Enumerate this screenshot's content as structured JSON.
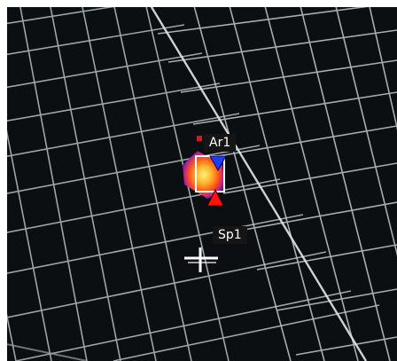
{
  "overlays": {
    "area_label": "Ar1",
    "spot_label": "Sp1"
  },
  "markers": {
    "max_marker": "red-triangle",
    "min_marker": "blue-triangle",
    "spot_cursor": "crosshair"
  },
  "palette": {
    "background": "#0b0f12",
    "panel_cell": "#0d1418",
    "frame_line": "#c8ccce",
    "hotspot_core": "#ffe066",
    "hotspot_mid": "#ff5a1f",
    "hotspot_outer": "#7a1fb8",
    "min_marker_color": "#1c3cff",
    "max_marker_color": "#ff1010",
    "label_bg": "#151515",
    "label_text": "#ffffff"
  }
}
